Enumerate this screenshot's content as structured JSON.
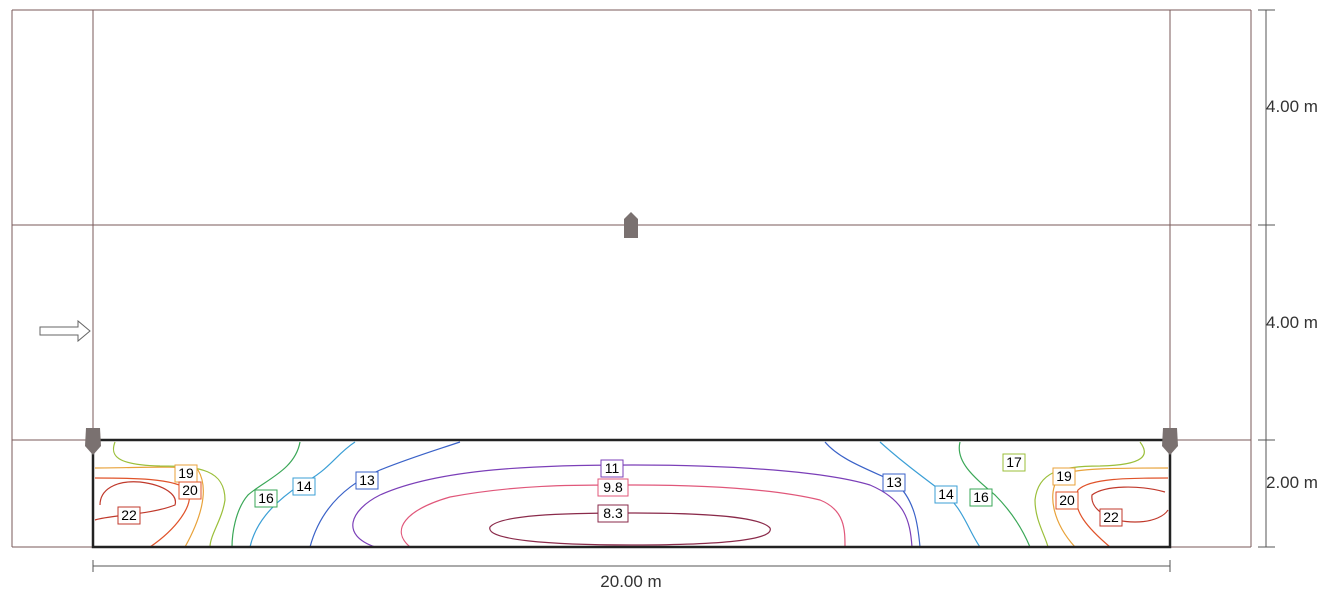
{
  "dimensions": {
    "segment_top": "4.00 m",
    "segment_middle": "4.00 m",
    "segment_bottom": "2.00 m",
    "width": "20.00 m"
  },
  "contours": [
    {
      "label": "22",
      "color": "#c0392b"
    },
    {
      "label": "20",
      "color": "#e0532a"
    },
    {
      "label": "19",
      "color": "#e8a23a"
    },
    {
      "label": "17",
      "color": "#9bbf3a"
    },
    {
      "label": "16",
      "color": "#3aa757"
    },
    {
      "label": "14",
      "color": "#3b9fd6"
    },
    {
      "label": "13",
      "color": "#3a62c8"
    },
    {
      "label": "11",
      "color": "#7b3fb8"
    },
    {
      "label": "9.8",
      "color": "#e0577a"
    },
    {
      "label": "8.3",
      "color": "#8a2a4a"
    }
  ],
  "icons": [
    "luminaire-icon",
    "direction-arrow-icon"
  ]
}
